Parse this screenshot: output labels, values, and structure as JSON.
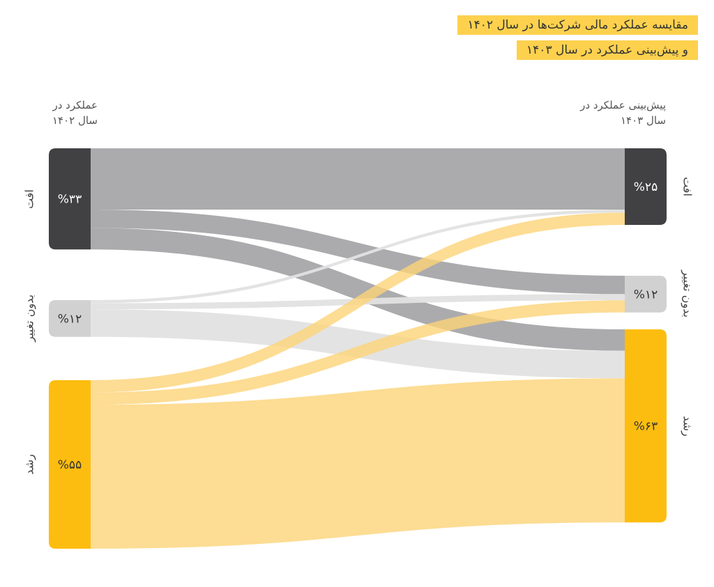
{
  "title": {
    "line1": "مقایسه عملکرد مالی شرکت‌ها در سال ۱۴۰۲",
    "line2": "و پیش‌بینی عملکرد در سال ۱۴۰۳",
    "background": "#fdd14e"
  },
  "chart_data": {
    "type": "sankey",
    "left_header": {
      "line1": "عملکرد در",
      "line2": "سال ۱۴۰۲"
    },
    "right_header": {
      "line1": "پیش‌بینی عملکرد در",
      "line2": "سال ۱۴۰۳"
    },
    "categories": [
      "افت",
      "بدون تغییر",
      "رشد"
    ],
    "left_nodes": [
      {
        "name": "افت",
        "value": 33,
        "label": "%۳۳",
        "color": "#414042"
      },
      {
        "name": "بدون تغییر",
        "value": 12,
        "label": "%۱۲",
        "color": "#d1d1d1"
      },
      {
        "name": "رشد",
        "value": 55,
        "label": "%۵۵",
        "color": "#fdbd10"
      }
    ],
    "right_nodes": [
      {
        "name": "افت",
        "value": 25,
        "label": "%۲۵",
        "color": "#414042"
      },
      {
        "name": "بدون تغییر",
        "value": 12,
        "label": "%۱۲",
        "color": "#d1d1d1"
      },
      {
        "name": "رشد",
        "value": 63,
        "label": "%۶۳",
        "color": "#fdbd10"
      }
    ],
    "flow_colors": [
      "#a7a7a9",
      "#e2e2e2",
      "#fcd378"
    ],
    "flows": [
      {
        "from": 0,
        "to": 0,
        "value": 20
      },
      {
        "from": 0,
        "to": 1,
        "value": 6
      },
      {
        "from": 0,
        "to": 2,
        "value": 7
      },
      {
        "from": 1,
        "to": 0,
        "value": 1
      },
      {
        "from": 1,
        "to": 1,
        "value": 2
      },
      {
        "from": 1,
        "to": 2,
        "value": 9
      },
      {
        "from": 2,
        "to": 0,
        "value": 4
      },
      {
        "from": 2,
        "to": 1,
        "value": 4
      },
      {
        "from": 2,
        "to": 2,
        "value": 47
      }
    ]
  }
}
